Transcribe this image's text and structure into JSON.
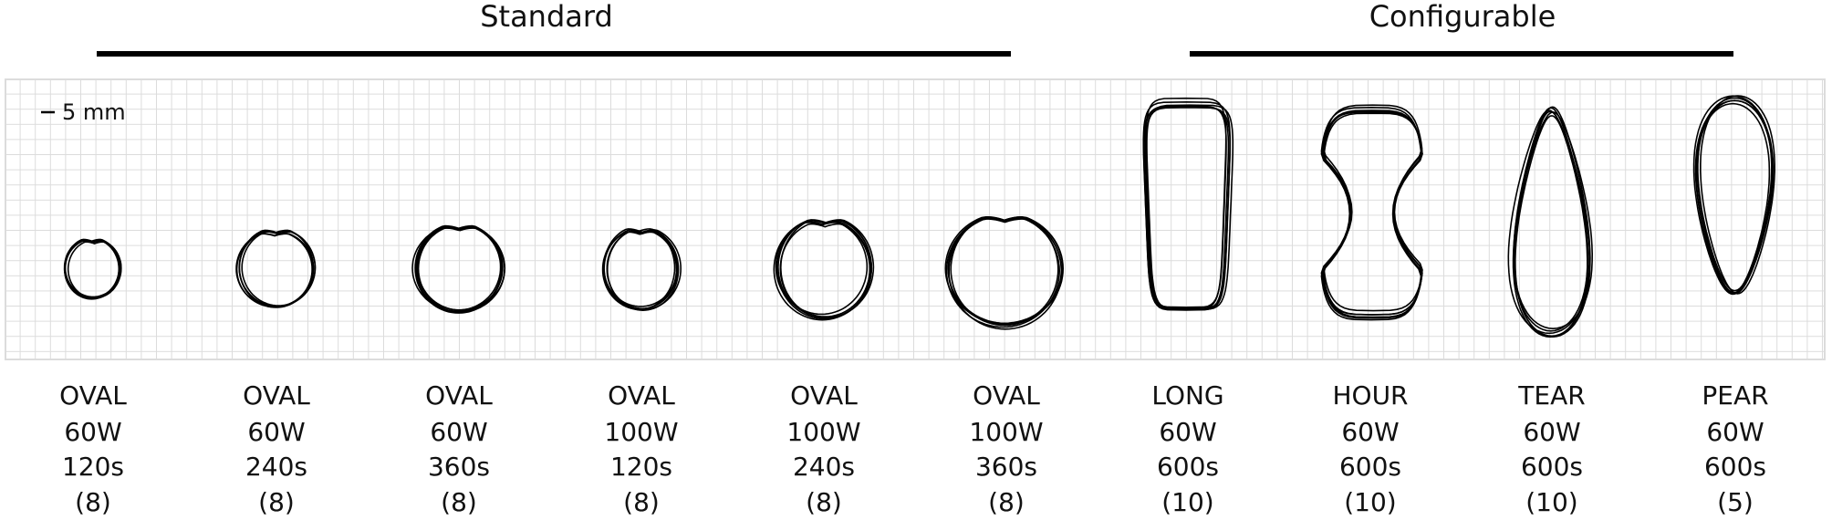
{
  "header": {
    "groups": [
      {
        "label": "Standard"
      },
      {
        "label": "Configurable"
      }
    ],
    "scale_label": "5 mm"
  },
  "columns": [
    {
      "shape": "OVAL",
      "power": "60W",
      "time": "120s",
      "count": "(8)"
    },
    {
      "shape": "OVAL",
      "power": "60W",
      "time": "240s",
      "count": "(8)"
    },
    {
      "shape": "OVAL",
      "power": "60W",
      "time": "360s",
      "count": "(8)"
    },
    {
      "shape": "OVAL",
      "power": "100W",
      "time": "120s",
      "count": "(8)"
    },
    {
      "shape": "OVAL",
      "power": "100W",
      "time": "240s",
      "count": "(8)"
    },
    {
      "shape": "OVAL",
      "power": "100W",
      "time": "360s",
      "count": "(8)"
    },
    {
      "shape": "LONG",
      "power": "60W",
      "time": "600s",
      "count": "(10)"
    },
    {
      "shape": "HOUR",
      "power": "60W",
      "time": "600s",
      "count": "(10)"
    },
    {
      "shape": "TEAR",
      "power": "60W",
      "time": "600s",
      "count": "(10)"
    },
    {
      "shape": "PEAR",
      "power": "60W",
      "time": "600s",
      "count": "(5)"
    }
  ]
}
